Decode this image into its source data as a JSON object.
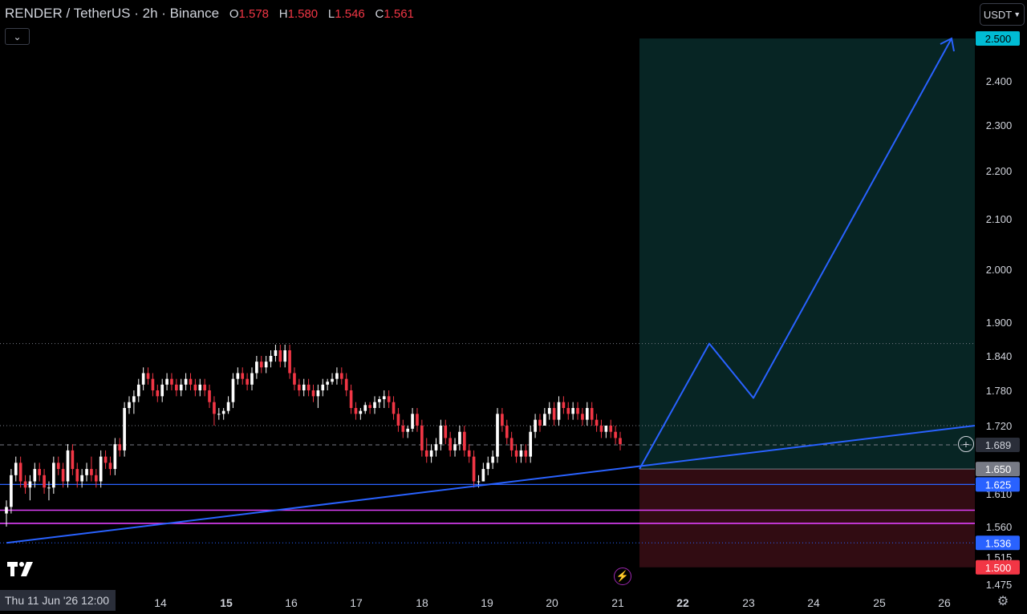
{
  "header": {
    "symbol_title": "RENDER / TetherUS · 2h · Binance",
    "ohlc": [
      {
        "key": "O",
        "value": "1.578"
      },
      {
        "key": "H",
        "value": "1.580"
      },
      {
        "key": "L",
        "value": "1.546"
      },
      {
        "key": "C",
        "value": "1.561"
      }
    ],
    "collapse_icon": "chevron-down-icon"
  },
  "currency_selector": "USDT",
  "price_axis": {
    "ticks": [
      "2.400",
      "2.300",
      "2.200",
      "2.100",
      "2.000",
      "1.900",
      "1.840",
      "1.780",
      "1.720",
      "1.610",
      "1.560",
      "1.515",
      "1.475"
    ],
    "badges": [
      {
        "value": "2.500",
        "color": "#00bcd4",
        "text_color": "#000000"
      },
      {
        "value": "1.689",
        "color": "#2a2e39",
        "text_color": "#d1d4dc"
      },
      {
        "value": "1.650",
        "color": "#787b86",
        "text_color": "#ffffff"
      },
      {
        "value": "1.625",
        "color": "#2962ff",
        "text_color": "#ffffff"
      },
      {
        "value": "1.536",
        "color": "#2962ff",
        "text_color": "#ffffff"
      },
      {
        "value": "1.500",
        "color": "#f23645",
        "text_color": "#ffffff"
      }
    ]
  },
  "time_axis": {
    "cursor_label": "Thu 11 Jun '26   12:00",
    "ticks": [
      "14",
      "15",
      "16",
      "17",
      "18",
      "19",
      "20",
      "21",
      "22",
      "23",
      "24",
      "25",
      "26"
    ],
    "bold_ticks": [
      "15",
      "22"
    ]
  },
  "chart_data": {
    "type": "candlestick",
    "symbol": "RENDER / TetherUS",
    "interval": "2h",
    "exchange": "Binance",
    "y_range": [
      1.45,
      2.52
    ],
    "ohlc": [
      [
        1.58,
        1.6,
        1.56,
        1.59
      ],
      [
        1.59,
        1.65,
        1.58,
        1.64
      ],
      [
        1.64,
        1.67,
        1.63,
        1.66
      ],
      [
        1.66,
        1.67,
        1.62,
        1.63
      ],
      [
        1.63,
        1.64,
        1.61,
        1.62
      ],
      [
        1.62,
        1.64,
        1.6,
        1.63
      ],
      [
        1.63,
        1.66,
        1.62,
        1.65
      ],
      [
        1.65,
        1.66,
        1.63,
        1.64
      ],
      [
        1.64,
        1.65,
        1.61,
        1.62
      ],
      [
        1.62,
        1.63,
        1.6,
        1.62
      ],
      [
        1.62,
        1.67,
        1.61,
        1.66
      ],
      [
        1.66,
        1.67,
        1.64,
        1.65
      ],
      [
        1.65,
        1.66,
        1.62,
        1.63
      ],
      [
        1.63,
        1.69,
        1.62,
        1.68
      ],
      [
        1.68,
        1.69,
        1.64,
        1.65
      ],
      [
        1.65,
        1.66,
        1.62,
        1.63
      ],
      [
        1.63,
        1.65,
        1.62,
        1.64
      ],
      [
        1.64,
        1.66,
        1.63,
        1.65
      ],
      [
        1.65,
        1.67,
        1.63,
        1.64
      ],
      [
        1.64,
        1.65,
        1.62,
        1.63
      ],
      [
        1.63,
        1.68,
        1.62,
        1.67
      ],
      [
        1.67,
        1.68,
        1.65,
        1.66
      ],
      [
        1.66,
        1.67,
        1.64,
        1.65
      ],
      [
        1.65,
        1.7,
        1.64,
        1.69
      ],
      [
        1.69,
        1.7,
        1.67,
        1.68
      ],
      [
        1.68,
        1.76,
        1.67,
        1.75
      ],
      [
        1.75,
        1.77,
        1.74,
        1.76
      ],
      [
        1.76,
        1.78,
        1.74,
        1.77
      ],
      [
        1.77,
        1.8,
        1.76,
        1.79
      ],
      [
        1.79,
        1.82,
        1.78,
        1.81
      ],
      [
        1.81,
        1.82,
        1.79,
        1.8
      ],
      [
        1.8,
        1.81,
        1.77,
        1.78
      ],
      [
        1.78,
        1.79,
        1.76,
        1.77
      ],
      [
        1.77,
        1.8,
        1.76,
        1.79
      ],
      [
        1.79,
        1.81,
        1.78,
        1.8
      ],
      [
        1.8,
        1.81,
        1.78,
        1.79
      ],
      [
        1.79,
        1.8,
        1.77,
        1.78
      ],
      [
        1.78,
        1.8,
        1.77,
        1.79
      ],
      [
        1.79,
        1.81,
        1.78,
        1.8
      ],
      [
        1.8,
        1.81,
        1.78,
        1.79
      ],
      [
        1.79,
        1.8,
        1.77,
        1.78
      ],
      [
        1.78,
        1.8,
        1.77,
        1.79
      ],
      [
        1.79,
        1.8,
        1.77,
        1.78
      ],
      [
        1.78,
        1.79,
        1.75,
        1.76
      ],
      [
        1.76,
        1.77,
        1.72,
        1.74
      ],
      [
        1.74,
        1.75,
        1.73,
        1.74
      ],
      [
        1.74,
        1.75,
        1.73,
        1.745
      ],
      [
        1.745,
        1.77,
        1.74,
        1.76
      ],
      [
        1.76,
        1.81,
        1.75,
        1.8
      ],
      [
        1.8,
        1.82,
        1.79,
        1.81
      ],
      [
        1.81,
        1.82,
        1.79,
        1.8
      ],
      [
        1.8,
        1.81,
        1.78,
        1.79
      ],
      [
        1.79,
        1.82,
        1.78,
        1.81
      ],
      [
        1.81,
        1.84,
        1.8,
        1.83
      ],
      [
        1.83,
        1.84,
        1.81,
        1.82
      ],
      [
        1.82,
        1.84,
        1.81,
        1.83
      ],
      [
        1.83,
        1.85,
        1.82,
        1.84
      ],
      [
        1.84,
        1.86,
        1.83,
        1.85
      ],
      [
        1.85,
        1.86,
        1.82,
        1.83
      ],
      [
        1.83,
        1.86,
        1.82,
        1.85
      ],
      [
        1.85,
        1.86,
        1.8,
        1.81
      ],
      [
        1.81,
        1.82,
        1.78,
        1.79
      ],
      [
        1.79,
        1.8,
        1.77,
        1.78
      ],
      [
        1.78,
        1.8,
        1.77,
        1.79
      ],
      [
        1.79,
        1.8,
        1.77,
        1.78
      ],
      [
        1.78,
        1.79,
        1.76,
        1.77
      ],
      [
        1.77,
        1.79,
        1.75,
        1.78
      ],
      [
        1.78,
        1.8,
        1.77,
        1.79
      ],
      [
        1.79,
        1.8,
        1.78,
        1.795
      ],
      [
        1.795,
        1.81,
        1.79,
        1.8
      ],
      [
        1.8,
        1.82,
        1.79,
        1.81
      ],
      [
        1.81,
        1.82,
        1.79,
        1.8
      ],
      [
        1.8,
        1.81,
        1.77,
        1.78
      ],
      [
        1.78,
        1.79,
        1.74,
        1.75
      ],
      [
        1.75,
        1.76,
        1.73,
        1.74
      ],
      [
        1.74,
        1.75,
        1.73,
        1.745
      ],
      [
        1.745,
        1.76,
        1.74,
        1.755
      ],
      [
        1.755,
        1.76,
        1.74,
        1.75
      ],
      [
        1.75,
        1.77,
        1.74,
        1.76
      ],
      [
        1.76,
        1.77,
        1.75,
        1.765
      ],
      [
        1.765,
        1.78,
        1.75,
        1.77
      ],
      [
        1.77,
        1.78,
        1.75,
        1.76
      ],
      [
        1.76,
        1.77,
        1.73,
        1.74
      ],
      [
        1.74,
        1.75,
        1.71,
        1.72
      ],
      [
        1.72,
        1.73,
        1.7,
        1.71
      ],
      [
        1.71,
        1.72,
        1.7,
        1.715
      ],
      [
        1.715,
        1.75,
        1.71,
        1.74
      ],
      [
        1.74,
        1.75,
        1.71,
        1.72
      ],
      [
        1.72,
        1.73,
        1.67,
        1.68
      ],
      [
        1.68,
        1.7,
        1.66,
        1.67
      ],
      [
        1.67,
        1.69,
        1.66,
        1.68
      ],
      [
        1.68,
        1.7,
        1.67,
        1.69
      ],
      [
        1.69,
        1.73,
        1.68,
        1.72
      ],
      [
        1.72,
        1.73,
        1.69,
        1.7
      ],
      [
        1.7,
        1.71,
        1.67,
        1.68
      ],
      [
        1.68,
        1.7,
        1.67,
        1.69
      ],
      [
        1.69,
        1.72,
        1.68,
        1.71
      ],
      [
        1.71,
        1.72,
        1.67,
        1.68
      ],
      [
        1.68,
        1.69,
        1.66,
        1.67
      ],
      [
        1.67,
        1.68,
        1.62,
        1.63
      ],
      [
        1.63,
        1.64,
        1.62,
        1.63
      ],
      [
        1.63,
        1.66,
        1.63,
        1.65
      ],
      [
        1.65,
        1.67,
        1.64,
        1.66
      ],
      [
        1.66,
        1.68,
        1.65,
        1.67
      ],
      [
        1.67,
        1.75,
        1.66,
        1.74
      ],
      [
        1.74,
        1.75,
        1.71,
        1.72
      ],
      [
        1.72,
        1.73,
        1.69,
        1.7
      ],
      [
        1.7,
        1.71,
        1.67,
        1.68
      ],
      [
        1.68,
        1.69,
        1.66,
        1.67
      ],
      [
        1.67,
        1.69,
        1.66,
        1.68
      ],
      [
        1.68,
        1.69,
        1.66,
        1.67
      ],
      [
        1.67,
        1.72,
        1.66,
        1.71
      ],
      [
        1.71,
        1.74,
        1.7,
        1.73
      ],
      [
        1.73,
        1.74,
        1.71,
        1.72
      ],
      [
        1.72,
        1.75,
        1.72,
        1.74
      ],
      [
        1.74,
        1.76,
        1.73,
        1.75
      ],
      [
        1.75,
        1.76,
        1.72,
        1.73
      ],
      [
        1.73,
        1.77,
        1.72,
        1.76
      ],
      [
        1.76,
        1.77,
        1.74,
        1.75
      ],
      [
        1.75,
        1.76,
        1.73,
        1.74
      ],
      [
        1.74,
        1.76,
        1.73,
        1.75
      ],
      [
        1.75,
        1.76,
        1.73,
        1.74
      ],
      [
        1.74,
        1.75,
        1.72,
        1.73
      ],
      [
        1.73,
        1.76,
        1.72,
        1.75
      ],
      [
        1.75,
        1.76,
        1.72,
        1.73
      ],
      [
        1.73,
        1.74,
        1.71,
        1.72
      ],
      [
        1.72,
        1.73,
        1.7,
        1.71
      ],
      [
        1.71,
        1.72,
        1.7,
        1.72
      ],
      [
        1.72,
        1.73,
        1.7,
        1.71
      ],
      [
        1.71,
        1.72,
        1.69,
        1.7
      ],
      [
        1.7,
        1.71,
        1.68,
        1.69
      ]
    ],
    "annotations": {
      "long_position": {
        "entry": 1.65,
        "target": 2.5,
        "stop": 1.5
      },
      "horizontal_levels": [
        {
          "price": 1.625,
          "color": "#2962ff",
          "style": "solid"
        },
        {
          "price": 1.585,
          "color": "#e040fb",
          "style": "solid"
        },
        {
          "price": 1.565,
          "color": "#e040fb",
          "style": "solid"
        },
        {
          "price": 1.536,
          "color": "#2962ff",
          "style": "dotted"
        },
        {
          "price": 1.689,
          "color": "#787b86",
          "style": "dashed"
        },
        {
          "price": 1.72,
          "color": "#b2b5be",
          "style": "dotted"
        },
        {
          "price": 1.862,
          "color": "#b2b5be",
          "style": "dotted"
        }
      ],
      "trendline_prices": [
        1.536,
        1.72
      ],
      "projection_path_prices": [
        1.65,
        1.862,
        1.767,
        2.5
      ]
    }
  }
}
